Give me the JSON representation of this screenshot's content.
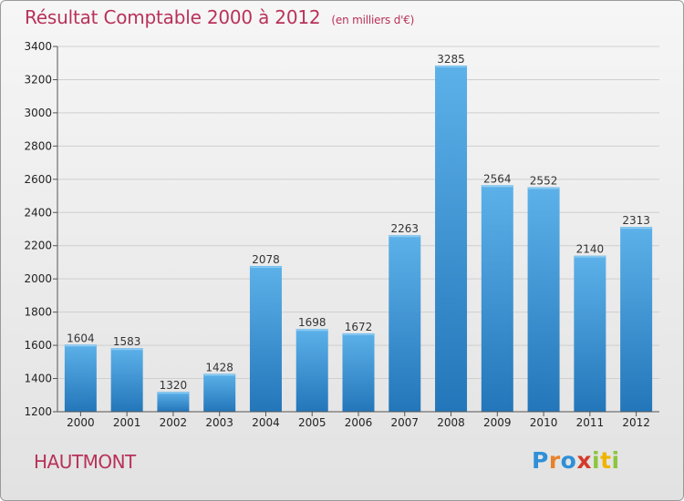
{
  "header": {
    "title": "Résultat Comptable 2000 à 2012",
    "subtitle": "(en milliers d'€)"
  },
  "footer": {
    "town": "HAUTMONT",
    "logo": [
      "P",
      "r",
      "o",
      "x",
      "i",
      "t",
      "i"
    ]
  },
  "colors": {
    "title": "#b8325a",
    "bar_top": "#5db1e9",
    "bar_bottom": "#2376b9",
    "grid": "#cfcfcf"
  },
  "chart_data": {
    "type": "bar",
    "title": "Résultat Comptable 2000 à 2012",
    "subtitle": "(en milliers d'€)",
    "xlabel": "",
    "ylabel": "",
    "categories": [
      "2000",
      "2001",
      "2002",
      "2003",
      "2004",
      "2005",
      "2006",
      "2007",
      "2008",
      "2009",
      "2010",
      "2011",
      "2012"
    ],
    "values": [
      1604,
      1583,
      1320,
      1428,
      2078,
      1698,
      1672,
      2263,
      3285,
      2564,
      2552,
      2140,
      2313
    ],
    "ylim": [
      1200,
      3400
    ],
    "yticks": [
      1200,
      1400,
      1600,
      1800,
      2000,
      2200,
      2400,
      2600,
      2800,
      3000,
      3200,
      3400
    ],
    "grid": true
  }
}
